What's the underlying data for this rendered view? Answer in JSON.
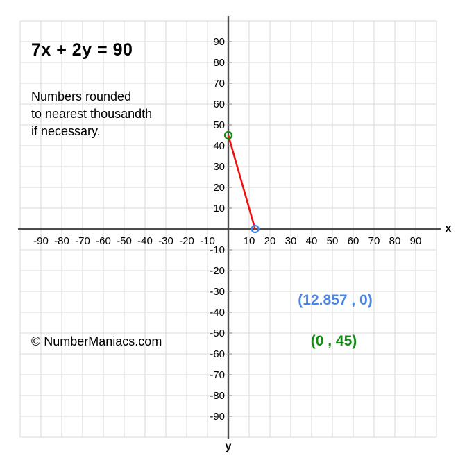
{
  "title": "7x + 2y = 90",
  "note": "Numbers rounded\nto nearest thousandth\nif necessary.",
  "copyright": "© NumberManiacs.com",
  "annotations": {
    "x_intercept": {
      "text": "(12.857 , 0)",
      "color": "#4a86e8"
    },
    "y_intercept": {
      "text": "(0 , 45)",
      "color": "#108c10"
    }
  },
  "chart_data": {
    "type": "line",
    "title": "7x + 2y = 90",
    "equation": "7x + 2y = 90",
    "xlabel": "x",
    "ylabel": "y",
    "xlim": [
      -100,
      100
    ],
    "ylim": [
      -100,
      100
    ],
    "grid": true,
    "grid_step": 10,
    "x_ticks": [
      -90,
      -80,
      -70,
      -60,
      -50,
      -40,
      -30,
      -20,
      -10,
      10,
      20,
      30,
      40,
      50,
      60,
      70,
      80,
      90
    ],
    "y_ticks": [
      90,
      80,
      70,
      60,
      50,
      40,
      30,
      20,
      10,
      -10,
      -20,
      -30,
      -40,
      -50,
      -60,
      -70,
      -80,
      -90
    ],
    "series": [
      {
        "name": "7x + 2y = 90",
        "color": "#ee1111",
        "points": [
          {
            "x": 0,
            "y": 45
          },
          {
            "x": 12.857,
            "y": 0
          }
        ]
      }
    ],
    "markers": [
      {
        "x": 0,
        "y": 45,
        "label": "(0 , 45)",
        "color": "#108c10",
        "name": "y-intercept-point"
      },
      {
        "x": 12.857,
        "y": 0,
        "label": "(12.857 , 0)",
        "color": "#4a86e8",
        "name": "x-intercept-point"
      }
    ],
    "colors": {
      "axis": "#4d4d4d",
      "grid": "#d9d9d9",
      "tick_label": "#000000",
      "background": "#ffffff"
    }
  }
}
